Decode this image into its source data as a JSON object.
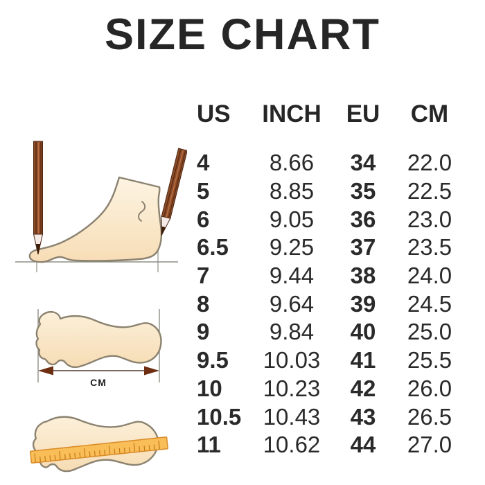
{
  "chart_data": {
    "type": "table",
    "title": "SIZE CHART",
    "columns": [
      "US",
      "INCH",
      "EU",
      "CM"
    ],
    "rows": [
      [
        "4",
        "8.66",
        "34",
        "22.0"
      ],
      [
        "5",
        "8.85",
        "35",
        "22.5"
      ],
      [
        "6",
        "9.05",
        "36",
        "23.0"
      ],
      [
        "6.5",
        "9.25",
        "37",
        "23.5"
      ],
      [
        "7",
        "9.44",
        "38",
        "24.0"
      ],
      [
        "8",
        "9.64",
        "39",
        "24.5"
      ],
      [
        "9",
        "9.84",
        "40",
        "25.0"
      ],
      [
        "9.5",
        "10.03",
        "41",
        "25.5"
      ],
      [
        "10",
        "10.23",
        "42",
        "26.0"
      ],
      [
        "10.5",
        "10.43",
        "43",
        "26.5"
      ],
      [
        "11",
        "10.62",
        "44",
        "27.0"
      ]
    ],
    "legend_position": "none",
    "grid": false
  },
  "illustrations": {
    "width_label": "CM",
    "foot_side_icon": "foot-profile-measured-with-pencils",
    "footprint_width_icon": "footprint-length-arrow",
    "footprint_ruler_icon": "footprint-with-ruler"
  },
  "colors": {
    "text": "#2a2a2a",
    "illustration_outline": "#8b8270",
    "guide_line": "#8f8f86",
    "foot_fill_light": "#fdf2de",
    "foot_fill_shade": "#f6ddb6",
    "pencil_body": "#8c4c28",
    "pencil_stripe": "#5c2c12",
    "pencil_wood": "#f6ebe7",
    "pencil_tip": "#3f1e09",
    "arrow": "#6d2e12",
    "ruler_fill": "#f9be57",
    "ruler_border": "#d98a26"
  }
}
